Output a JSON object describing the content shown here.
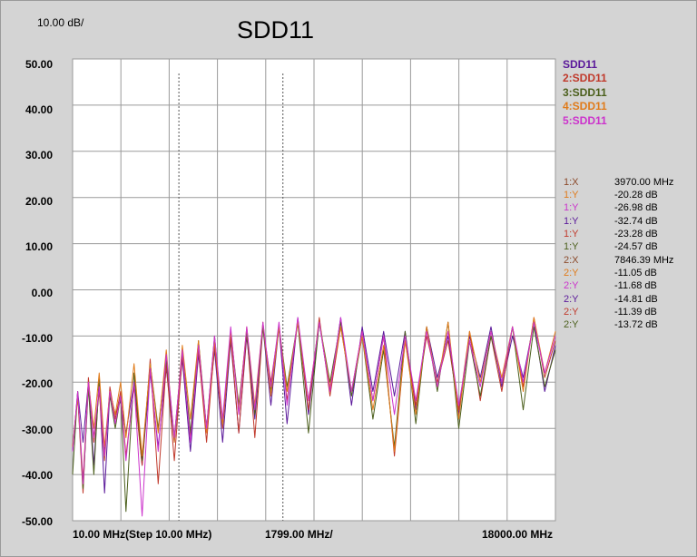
{
  "header": {
    "scale_label": "10.00 dB/",
    "title": "SDD11"
  },
  "colors": {
    "trace1": "#5a189a",
    "trace2": "#c0392b",
    "trace3": "#4b5f1c",
    "trace4": "#e07b1a",
    "trace5": "#cc33cc",
    "grid": "#9a9a9a",
    "plot_bg": "#ffffff",
    "marker_line": "#555555"
  },
  "legend": [
    {
      "label": "SDD11",
      "color": "#5a189a"
    },
    {
      "label": "2:SDD11",
      "color": "#c0392b"
    },
    {
      "label": "3:SDD11",
      "color": "#4b5f1c"
    },
    {
      "label": "4:SDD11",
      "color": "#e07b1a"
    },
    {
      "label": "5:SDD11",
      "color": "#cc33cc"
    }
  ],
  "markers": [
    {
      "name": "1:X",
      "value": "3970.00 MHz",
      "color": "#8b4a2b"
    },
    {
      "name": "1:Y",
      "value": "-20.28 dB",
      "color": "#e07b1a"
    },
    {
      "name": "1:Y",
      "value": "-26.98 dB",
      "color": "#cc33cc"
    },
    {
      "name": "1:Y",
      "value": "-32.74 dB",
      "color": "#5a189a"
    },
    {
      "name": "1:Y",
      "value": "-23.28 dB",
      "color": "#c0392b"
    },
    {
      "name": "1:Y",
      "value": "-24.57 dB",
      "color": "#4b5f1c"
    },
    {
      "name": "2:X",
      "value": "7846.39 MHz",
      "color": "#8b4a2b"
    },
    {
      "name": "2:Y",
      "value": "-11.05 dB",
      "color": "#e07b1a"
    },
    {
      "name": "2:Y",
      "value": "-11.68 dB",
      "color": "#cc33cc"
    },
    {
      "name": "2:Y",
      "value": "-14.81 dB",
      "color": "#5a189a"
    },
    {
      "name": "2:Y",
      "value": "-11.39 dB",
      "color": "#c0392b"
    },
    {
      "name": "2:Y",
      "value": "-13.72 dB",
      "color": "#4b5f1c"
    }
  ],
  "chart_data": {
    "type": "line",
    "title": "SDD11",
    "xlabel": "",
    "ylabel": "",
    "x_unit": "MHz",
    "y_unit": "dB",
    "xlim": [
      10,
      18000
    ],
    "ylim": [
      -50,
      50
    ],
    "grid": true,
    "legend_position": "right",
    "x_tick_labels": [
      "10.00 MHz(Step 10.00 MHz)",
      "1799.00 MHz/",
      "18000.00 MHz"
    ],
    "y_ticks": [
      50,
      40,
      30,
      20,
      10,
      0,
      -10,
      -20,
      -30,
      -40,
      -50
    ],
    "y_tick_labels": [
      "50.00",
      "40.00",
      "30.00",
      "20.00",
      "10.00",
      "0.00",
      "-10.00",
      "-20.00",
      "-30.00",
      "-40.00",
      "-50.00"
    ],
    "marker_x": [
      3970,
      7846.39
    ],
    "x": [
      10,
      200,
      400,
      600,
      800,
      1000,
      1200,
      1400,
      1600,
      1800,
      2000,
      2300,
      2600,
      2900,
      3200,
      3500,
      3800,
      4100,
      4400,
      4700,
      5000,
      5300,
      5600,
      5900,
      6200,
      6500,
      6800,
      7100,
      7400,
      7700,
      8000,
      8400,
      8800,
      9200,
      9600,
      10000,
      10400,
      10800,
      11200,
      11600,
      12000,
      12400,
      12800,
      13200,
      13600,
      14000,
      14400,
      14800,
      15200,
      15600,
      16000,
      16400,
      16800,
      17200,
      17600,
      18000
    ],
    "series": [
      {
        "name": "SDD11",
        "values": [
          -35,
          -22,
          -33,
          -20,
          -38,
          -20,
          -44,
          -22,
          -27,
          -24,
          -31,
          -20,
          -38,
          -18,
          -34,
          -17,
          -33,
          -15,
          -35,
          -14,
          -30,
          -13,
          -33,
          -11,
          -31,
          -10,
          -28,
          -8,
          -25,
          -8,
          -29,
          -6,
          -27,
          -7,
          -22,
          -6,
          -25,
          -8,
          -22,
          -9,
          -23,
          -9,
          -26,
          -8,
          -19,
          -10,
          -27,
          -10,
          -19,
          -8,
          -21,
          -10,
          -19,
          -7,
          -22,
          -12
        ]
      },
      {
        "name": "2:SDD11",
        "values": [
          -34,
          -23,
          -44,
          -19,
          -33,
          -22,
          -37,
          -21,
          -28,
          -22,
          -36,
          -21,
          -38,
          -15,
          -42,
          -16,
          -37,
          -14,
          -32,
          -13,
          -33,
          -12,
          -30,
          -10,
          -31,
          -9,
          -32,
          -8,
          -20,
          -8,
          -24,
          -7,
          -26,
          -6,
          -23,
          -8,
          -22,
          -9,
          -24,
          -10,
          -36,
          -11,
          -25,
          -10,
          -20,
          -11,
          -26,
          -9,
          -24,
          -10,
          -22,
          -8,
          -21,
          -6,
          -19,
          -11
        ]
      },
      {
        "name": "3:SDD11",
        "values": [
          -40,
          -22,
          -43,
          -21,
          -40,
          -19,
          -35,
          -23,
          -30,
          -23,
          -48,
          -18,
          -37,
          -16,
          -30,
          -15,
          -32,
          -13,
          -31,
          -11,
          -30,
          -10,
          -29,
          -9,
          -25,
          -9,
          -27,
          -8,
          -22,
          -8,
          -21,
          -7,
          -31,
          -7,
          -20,
          -7,
          -23,
          -10,
          -28,
          -13,
          -34,
          -9,
          -29,
          -8,
          -22,
          -7,
          -30,
          -11,
          -23,
          -10,
          -20,
          -8,
          -26,
          -8,
          -21,
          -13
        ]
      },
      {
        "name": "4:SDD11",
        "values": [
          -34,
          -23,
          -41,
          -20,
          -30,
          -18,
          -34,
          -22,
          -27,
          -20,
          -32,
          -16,
          -36,
          -16,
          -31,
          -13,
          -33,
          -12,
          -28,
          -11,
          -31,
          -11,
          -29,
          -9,
          -26,
          -8,
          -25,
          -7,
          -23,
          -8,
          -22,
          -7,
          -24,
          -7,
          -21,
          -8,
          -22,
          -10,
          -26,
          -12,
          -35,
          -11,
          -27,
          -8,
          -21,
          -7,
          -28,
          -9,
          -20,
          -9,
          -19,
          -8,
          -22,
          -6,
          -18,
          -9
        ]
      },
      {
        "name": "5:SDD11",
        "values": [
          -35,
          -22,
          -42,
          -20,
          -32,
          -21,
          -36,
          -22,
          -29,
          -23,
          -37,
          -20,
          -49,
          -17,
          -35,
          -14,
          -32,
          -13,
          -33,
          -12,
          -30,
          -10,
          -28,
          -8,
          -27,
          -8,
          -26,
          -7,
          -21,
          -7,
          -25,
          -6,
          -24,
          -7,
          -22,
          -6,
          -22,
          -9,
          -24,
          -10,
          -27,
          -10,
          -24,
          -9,
          -21,
          -9,
          -25,
          -11,
          -21,
          -9,
          -20,
          -8,
          -20,
          -7,
          -18,
          -10
        ]
      }
    ]
  }
}
